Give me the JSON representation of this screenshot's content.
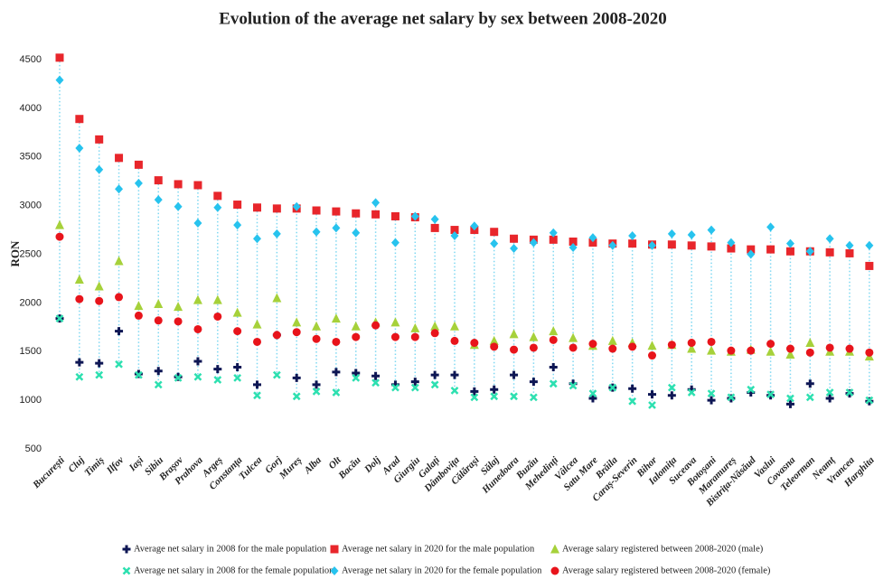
{
  "chart_data": {
    "type": "dot",
    "title": "Evolution of the average net salary by sex between 2008-2020",
    "y_label": "RON",
    "categories": [
      "București",
      "Cluj",
      "Timiș",
      "Ilfov",
      "Iași",
      "Sibiu",
      "Brașov",
      "Prahova",
      "Argeș",
      "Constanța",
      "Tulcea",
      "Gorj",
      "Mureș",
      "Alba",
      "Olt",
      "Bacău",
      "Dolj",
      "Arad",
      "Giurgiu",
      "Galați",
      "Dâmbovița",
      "Călărași",
      "Sălaj",
      "Hunedoara",
      "Buzău",
      "Mehedinți",
      "Vâlcea",
      "Satu Mare",
      "Brăila",
      "Caraș-Severin",
      "Bihor",
      "Ialomița",
      "Suceava",
      "Botoșani",
      "Maramureș",
      "Bistrița-Năsăud",
      "Vaslui",
      "Covasna",
      "Teleorman",
      "Neamț",
      "Vrancea",
      "Harghita"
    ],
    "ylim": [
      500,
      4500
    ],
    "yticks": [
      500,
      1000,
      1500,
      2000,
      2500,
      3000,
      3500,
      4000,
      4500
    ],
    "series": [
      {
        "name": "Average net salary in 2008 for the male population",
        "color": "#0d1654",
        "marker": "plus",
        "values": [
          1840,
          1390,
          1380,
          1710,
          1270,
          1300,
          1240,
          1400,
          1320,
          1340,
          1160,
          1670,
          1230,
          1160,
          1290,
          1280,
          1250,
          1160,
          1190,
          1260,
          1260,
          1090,
          1110,
          1260,
          1190,
          1340,
          1170,
          1020,
          1130,
          1120,
          1060,
          1050,
          1110,
          1000,
          1020,
          1080,
          1050,
          960,
          1170,
          1020,
          1070,
          990
        ]
      },
      {
        "name": "Average net salary in 2020 for the male population",
        "color": "#e8262b",
        "marker": "square",
        "values": [
          4520,
          3890,
          3680,
          3490,
          3420,
          3260,
          3220,
          3210,
          3100,
          3010,
          2980,
          2970,
          2970,
          2950,
          2940,
          2920,
          2910,
          2890,
          2880,
          2770,
          2750,
          2750,
          2730,
          2660,
          2650,
          2650,
          2630,
          2620,
          2610,
          2610,
          2600,
          2600,
          2590,
          2580,
          2560,
          2550,
          2550,
          2530,
          2530,
          2520,
          2510,
          2380
        ]
      },
      {
        "name": "Average salary registered between 2008-2020 (male)",
        "color": "#a6d13a",
        "marker": "triangle",
        "values": [
          2800,
          2240,
          2170,
          2430,
          1970,
          1990,
          1960,
          2030,
          2030,
          1900,
          1780,
          2050,
          1800,
          1760,
          1840,
          1760,
          1800,
          1800,
          1740,
          1760,
          1760,
          1570,
          1610,
          1680,
          1650,
          1710,
          1640,
          1560,
          1610,
          1590,
          1560,
          1570,
          1530,
          1510,
          1500,
          1520,
          1500,
          1470,
          1590,
          1500,
          1500,
          1450
        ]
      },
      {
        "name": "Average net salary in 2008 for the female population",
        "color": "#2de0b0",
        "marker": "x",
        "values": [
          1840,
          1240,
          1260,
          1370,
          1260,
          1160,
          1230,
          1240,
          1210,
          1230,
          1050,
          1260,
          1040,
          1090,
          1080,
          1230,
          1180,
          1130,
          1130,
          1160,
          1100,
          1030,
          1040,
          1040,
          1030,
          1170,
          1150,
          1070,
          1130,
          990,
          950,
          1130,
          1080,
          1070,
          1030,
          1110,
          1060,
          1020,
          1030,
          1080,
          1080,
          1000
        ]
      },
      {
        "name": "Average net salary in 2020 for the female population",
        "color": "#27c3ee",
        "marker": "diamond",
        "values": [
          4290,
          3590,
          3370,
          3170,
          3230,
          3060,
          2990,
          2820,
          2980,
          2800,
          2660,
          2710,
          2990,
          2730,
          2770,
          2720,
          3030,
          2620,
          2890,
          2860,
          2690,
          2790,
          2610,
          2560,
          2620,
          2720,
          2570,
          2670,
          2590,
          2690,
          2590,
          2710,
          2700,
          2750,
          2620,
          2500,
          2780,
          2610,
          2530,
          2660,
          2590,
          2590
        ]
      },
      {
        "name": "Average salary registered between 2008-2020 (female)",
        "color": "#e8141b",
        "marker": "circle",
        "values": [
          2680,
          2040,
          2020,
          2060,
          1870,
          1820,
          1810,
          1730,
          1860,
          1710,
          1600,
          1670,
          1700,
          1630,
          1600,
          1650,
          1770,
          1650,
          1650,
          1690,
          1610,
          1590,
          1550,
          1520,
          1540,
          1620,
          1540,
          1580,
          1530,
          1550,
          1460,
          1570,
          1590,
          1600,
          1510,
          1510,
          1580,
          1530,
          1490,
          1540,
          1530,
          1490
        ]
      }
    ]
  }
}
